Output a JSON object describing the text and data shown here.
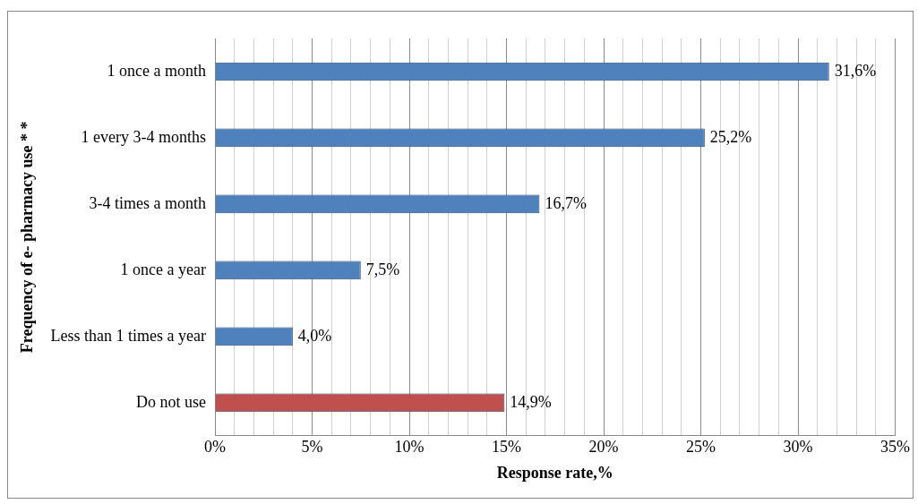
{
  "chart_data": {
    "type": "bar",
    "orientation": "horizontal",
    "xlabel": "Response rate,%",
    "ylabel": "Frequency of e- pharmacy use * *",
    "categories": [
      "1 once a month",
      "1 every 3-4 months",
      "3-4 times a month",
      "1 once a year",
      "Less than 1 times a year",
      "Do not use"
    ],
    "values": [
      31.6,
      25.2,
      16.7,
      7.5,
      4.0,
      14.9
    ],
    "colors": [
      "#4f81bd",
      "#4f81bd",
      "#4f81bd",
      "#4f81bd",
      "#4f81bd",
      "#c0504d"
    ],
    "value_labels": [
      "31,6%",
      "25,2%",
      "16,7%",
      "7,5%",
      "4,0%",
      "14,9%"
    ],
    "xlim": [
      0,
      35
    ],
    "xticks": [
      {
        "value": 0,
        "label": "0%"
      },
      {
        "value": 1,
        "label": null
      },
      {
        "value": 2,
        "label": null
      },
      {
        "value": 3,
        "label": null
      },
      {
        "value": 4,
        "label": null
      },
      {
        "value": 5,
        "label": "5%"
      },
      {
        "value": 6,
        "label": null
      },
      {
        "value": 7,
        "label": null
      },
      {
        "value": 8,
        "label": null
      },
      {
        "value": 9,
        "label": null
      },
      {
        "value": 10,
        "label": "10%"
      },
      {
        "value": 11,
        "label": null
      },
      {
        "value": 12,
        "label": null
      },
      {
        "value": 13,
        "label": null
      },
      {
        "value": 14,
        "label": null
      },
      {
        "value": 15,
        "label": "15%"
      },
      {
        "value": 16,
        "label": null
      },
      {
        "value": 17,
        "label": null
      },
      {
        "value": 18,
        "label": null
      },
      {
        "value": 19,
        "label": null
      },
      {
        "value": 20,
        "label": "20%"
      },
      {
        "value": 21,
        "label": null
      },
      {
        "value": 22,
        "label": null
      },
      {
        "value": 23,
        "label": null
      },
      {
        "value": 24,
        "label": null
      },
      {
        "value": 25,
        "label": "25%"
      },
      {
        "value": 26,
        "label": null
      },
      {
        "value": 27,
        "label": null
      },
      {
        "value": 28,
        "label": null
      },
      {
        "value": 29,
        "label": null
      },
      {
        "value": 30,
        "label": "30%"
      },
      {
        "value": 31,
        "label": null
      },
      {
        "value": 32,
        "label": null
      },
      {
        "value": 33,
        "label": null
      },
      {
        "value": 34,
        "label": null
      },
      {
        "value": 35,
        "label": "35%"
      }
    ],
    "grid": "x",
    "legend": false
  }
}
